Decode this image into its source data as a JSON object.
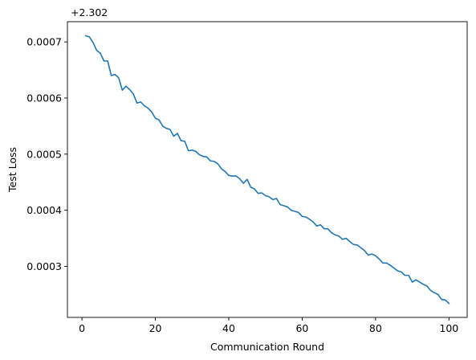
{
  "chart_data": {
    "type": "line",
    "title": "",
    "xlabel": "Communication Round",
    "ylabel": "Test Loss",
    "offset_label": "+2.302",
    "xlim": [
      -3.96,
      104.96
    ],
    "ylim": [
      0.000209,
      0.000736
    ],
    "xticks": [
      0,
      20,
      40,
      60,
      80,
      100
    ],
    "xtick_labels": [
      "0",
      "20",
      "40",
      "60",
      "80",
      "100"
    ],
    "yticks": [
      0.0003,
      0.0004,
      0.0005,
      0.0006,
      0.0007
    ],
    "ytick_labels": [
      "0.0003",
      "0.0004",
      "0.0005",
      "0.0006",
      "0.0007"
    ],
    "grid": false,
    "legend": "none",
    "line_color": "#1f77b4",
    "series": [
      {
        "x": [
          1,
          2,
          3,
          4,
          5,
          6,
          7,
          8,
          9,
          10,
          11,
          12,
          13,
          14,
          15,
          16,
          17,
          18,
          19,
          20,
          21,
          22,
          23,
          24,
          25,
          26,
          27,
          28,
          29,
          30,
          31,
          32,
          33,
          34,
          35,
          36,
          37,
          38,
          39,
          40,
          41,
          42,
          43,
          44,
          45,
          46,
          47,
          48,
          49,
          50,
          51,
          52,
          53,
          54,
          55,
          56,
          57,
          58,
          59,
          60,
          61,
          62,
          63,
          64,
          65,
          66,
          67,
          68,
          69,
          70,
          71,
          72,
          73,
          74,
          75,
          76,
          77,
          78,
          79,
          80,
          81,
          82,
          83,
          84,
          85,
          86,
          87,
          88,
          89,
          90,
          91,
          92,
          93,
          94,
          95,
          96,
          97,
          98,
          99,
          100
        ],
        "values": [
          0.000711,
          0.000709,
          0.000699,
          0.000685,
          0.00068,
          0.000666,
          0.000666,
          0.00064,
          0.000642,
          0.000636,
          0.000614,
          0.000621,
          0.000615,
          0.000607,
          0.000591,
          0.000593,
          0.000586,
          0.000582,
          0.000575,
          0.000564,
          0.000561,
          0.00055,
          0.000546,
          0.000544,
          0.000532,
          0.000537,
          0.000524,
          0.000523,
          0.000506,
          0.000507,
          0.000505,
          0.000499,
          0.000496,
          0.000495,
          0.000488,
          0.000487,
          0.000483,
          0.000474,
          0.000469,
          0.000462,
          0.000461,
          0.000461,
          0.000456,
          0.000448,
          0.000455,
          0.000441,
          0.000438,
          0.00043,
          0.000431,
          0.000426,
          0.000424,
          0.000419,
          0.000421,
          0.00041,
          0.000408,
          0.000406,
          0.0004,
          0.000398,
          0.000396,
          0.000389,
          0.000388,
          0.000384,
          0.000379,
          0.000372,
          0.000374,
          0.000367,
          0.000367,
          0.00036,
          0.000356,
          0.000354,
          0.000348,
          0.00035,
          0.000344,
          0.000339,
          0.000338,
          0.000333,
          0.000328,
          0.00032,
          0.000322,
          0.000319,
          0.000313,
          0.000306,
          0.000306,
          0.000302,
          0.000297,
          0.000292,
          0.00029,
          0.000284,
          0.000284,
          0.000272,
          0.000276,
          0.000272,
          0.000268,
          0.000265,
          0.000257,
          0.000253,
          0.00025,
          0.000241,
          0.00024,
          0.000234
        ]
      }
    ]
  }
}
